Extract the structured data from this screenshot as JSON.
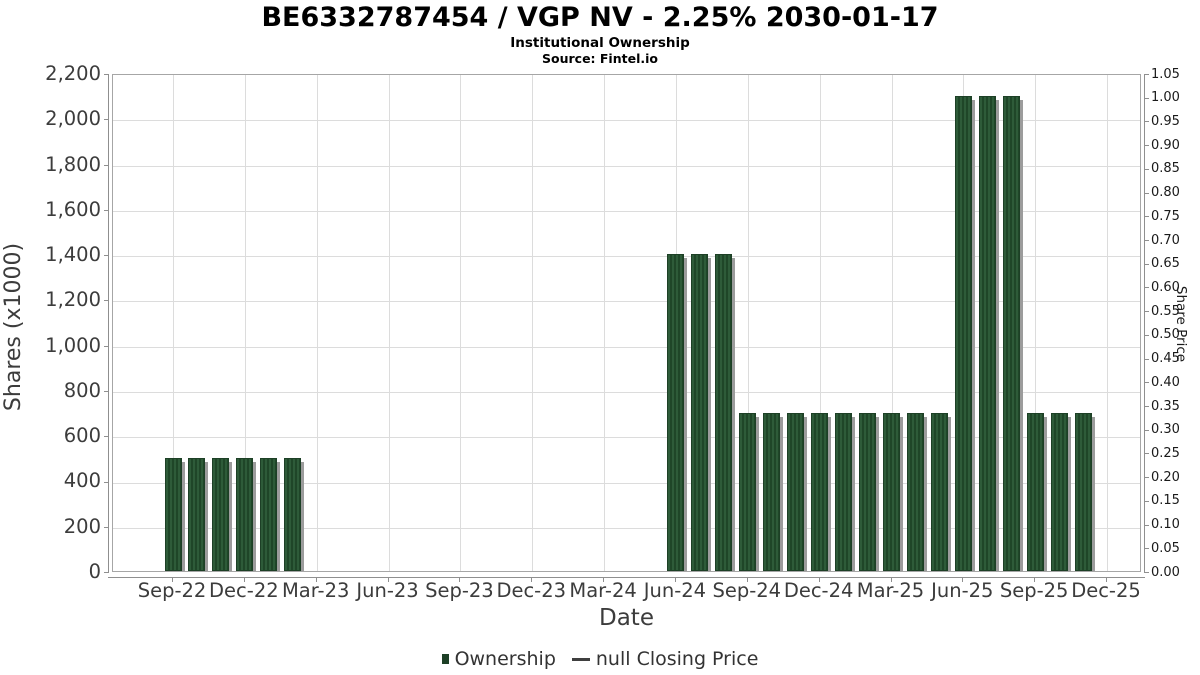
{
  "chart_data": {
    "type": "bar",
    "title": "BE6332787454 / VGP NV - 2.25% 2030-01-17",
    "subtitle": "Institutional Ownership",
    "source": "Source: Fintel.io",
    "xlabel": "Date",
    "grid": true,
    "legend_position": "bottom",
    "left_axis": {
      "label": "Shares (x1000)",
      "min": 0,
      "max": 2200,
      "step": 200,
      "tick_labels": [
        "2,200",
        "2,000",
        "1,800",
        "1,600",
        "1,400",
        "1,200",
        "1,000",
        "800",
        "600",
        "400",
        "200",
        "0"
      ]
    },
    "right_axis": {
      "label": "Share Price",
      "min": 0.0,
      "max": 1.05,
      "step": 0.05,
      "tick_labels": [
        "1.05",
        "1.00",
        "0.95",
        "0.90",
        "0.85",
        "0.80",
        "0.75",
        "0.70",
        "0.65",
        "0.60",
        "0.55",
        "0.50",
        "0.45",
        "0.40",
        "0.35",
        "0.30",
        "0.25",
        "0.20",
        "0.15",
        "0.10",
        "0.05",
        "0.00"
      ]
    },
    "x_tick_labels": [
      "Sep-22",
      "Dec-22",
      "Mar-23",
      "Jun-23",
      "Sep-23",
      "Dec-23",
      "Mar-24",
      "Jun-24",
      "Sep-24",
      "Dec-24",
      "Mar-25",
      "Jun-25",
      "Sep-25",
      "Dec-25"
    ],
    "series": [
      {
        "name": "Ownership",
        "type": "bar",
        "unit": "shares x1000",
        "points": [
          {
            "month": "Sep-22",
            "value": 500
          },
          {
            "month": "Oct-22",
            "value": 500
          },
          {
            "month": "Nov-22",
            "value": 500
          },
          {
            "month": "Dec-22",
            "value": 500
          },
          {
            "month": "Jan-23",
            "value": 500
          },
          {
            "month": "Feb-23",
            "value": 500
          },
          {
            "month": "Jun-24",
            "value": 1400
          },
          {
            "month": "Jul-24",
            "value": 1400
          },
          {
            "month": "Aug-24",
            "value": 1400
          },
          {
            "month": "Sep-24",
            "value": 700
          },
          {
            "month": "Oct-24",
            "value": 700
          },
          {
            "month": "Nov-24",
            "value": 700
          },
          {
            "month": "Dec-24",
            "value": 700
          },
          {
            "month": "Jan-25",
            "value": 700
          },
          {
            "month": "Feb-25",
            "value": 700
          },
          {
            "month": "Mar-25",
            "value": 700
          },
          {
            "month": "Apr-25",
            "value": 700
          },
          {
            "month": "May-25",
            "value": 700
          },
          {
            "month": "Jun-25",
            "value": 2100
          },
          {
            "month": "Jul-25",
            "value": 2100
          },
          {
            "month": "Aug-25",
            "value": 2100
          },
          {
            "month": "Sep-25",
            "value": 700
          },
          {
            "month": "Oct-25",
            "value": 700
          },
          {
            "month": "Nov-25",
            "value": 700
          }
        ]
      },
      {
        "name": "null Closing Price",
        "type": "line",
        "points": []
      }
    ],
    "legend": [
      {
        "label": "Ownership",
        "marker": "square"
      },
      {
        "label": "null Closing Price",
        "marker": "dash"
      }
    ]
  },
  "colors": {
    "bar_fill": "#2e5b39",
    "bar_stripe": "#1f4628",
    "bar_edge": "#1d4026",
    "bar_shadow": "#9c9c9c",
    "gridline": "#dcdcdc",
    "plot_border": "#a6a6a6",
    "axis_text": "#3c3c3c"
  }
}
